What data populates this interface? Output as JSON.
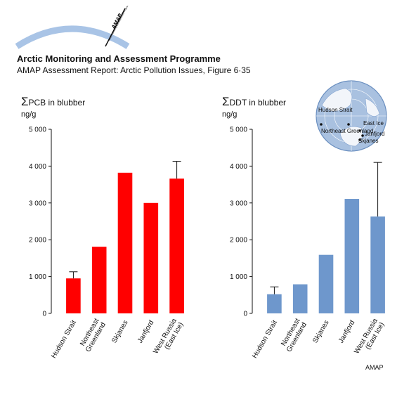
{
  "header": {
    "logo_text": "AMAP",
    "logo_subtext": "Arctic Monitoring and Assessment Programme",
    "title": "Arctic Monitoring and Assessment Programme",
    "subtitle": "AMAP Assessment Report: Arctic Pollution Issues, Figure 6·35"
  },
  "map_inset": {
    "labels": [
      "Hudson Strait",
      "Northeast Greenland",
      "East Ice",
      "Janfjord",
      "Skjanes"
    ]
  },
  "footer": {
    "credit": "AMAP"
  },
  "colors": {
    "pcb": "#ff0000",
    "ddt": "#6e97cc",
    "map_sea": "#a9c1e0",
    "map_land": "#f2f5fa"
  },
  "chart_data": [
    {
      "type": "bar",
      "title": "ΣPCB in blubber",
      "ylabel": "ng/g",
      "xlabel": "",
      "categories": [
        "Hudson Strait",
        "Northeast Greenland",
        "Skjanes",
        "Janfjord",
        "West Russia (East Ice)"
      ],
      "values": [
        950,
        1810,
        3820,
        3000,
        3660
      ],
      "error_upper": [
        1130,
        null,
        null,
        null,
        4130
      ],
      "ylim": [
        0,
        5000
      ],
      "yticks": [
        0,
        1000,
        2000,
        3000,
        4000,
        5000
      ],
      "ytick_labels": [
        "0",
        "1 000",
        "2 000",
        "3 000",
        "4 000",
        "5 000"
      ],
      "grid": false,
      "color": "#ff0000"
    },
    {
      "type": "bar",
      "title": "ΣDDT in blubber",
      "ylabel": "ng/g",
      "xlabel": "",
      "categories": [
        "Hudson Strait",
        "Northeast Greenland",
        "Skjanes",
        "Janfjord",
        "West Russia (East Ice)"
      ],
      "values": [
        520,
        790,
        1590,
        3110,
        2630
      ],
      "error_upper": [
        720,
        null,
        null,
        null,
        4100
      ],
      "ylim": [
        0,
        5000
      ],
      "yticks": [
        0,
        1000,
        2000,
        3000,
        4000,
        5000
      ],
      "ytick_labels": [
        "0",
        "1 000",
        "2 000",
        "3 000",
        "4 000",
        "5 000"
      ],
      "grid": false,
      "color": "#6e97cc"
    }
  ]
}
